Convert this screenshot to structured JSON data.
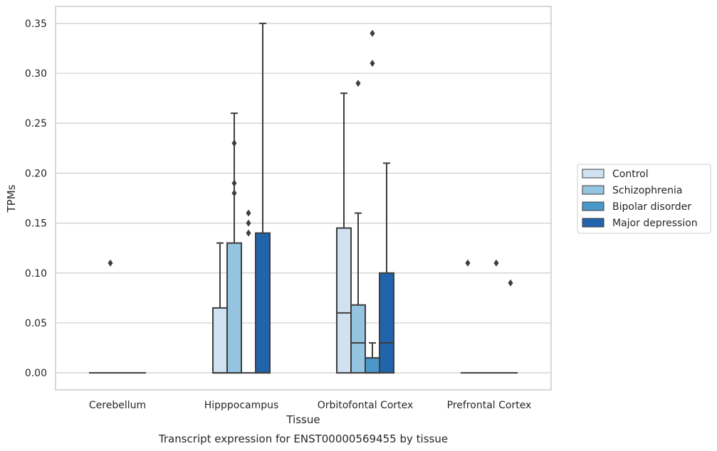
{
  "chart_data": {
    "type": "box",
    "title": "Transcript expression for ENST00000569455 by tissue",
    "xlabel": "Tissue",
    "ylabel": "TPMs",
    "ylim": [
      -0.017,
      0.367
    ],
    "yticks": [
      "0.00",
      "0.05",
      "0.10",
      "0.15",
      "0.20",
      "0.25",
      "0.30",
      "0.35"
    ],
    "categories": [
      "Cerebellum",
      "Hipppocampus",
      "Orbitofontal Cortex",
      "Prefrontal Cortex"
    ],
    "grid": true,
    "legend_position": "right",
    "series": [
      {
        "name": "Control",
        "color": "#d0e1f2",
        "boxes": [
          {
            "q1": 0,
            "median": 0,
            "q3": 0,
            "whisker_low": 0,
            "whisker_high": 0,
            "outliers": []
          },
          {
            "q1": 0,
            "median": 0,
            "q3": 0.065,
            "whisker_low": 0,
            "whisker_high": 0.13,
            "outliers": []
          },
          {
            "q1": 0,
            "median": 0.06,
            "q3": 0.145,
            "whisker_low": 0,
            "whisker_high": 0.28,
            "outliers": []
          },
          {
            "q1": 0,
            "median": 0,
            "q3": 0,
            "whisker_low": 0,
            "whisker_high": 0,
            "outliers": [
              0.11
            ]
          }
        ]
      },
      {
        "name": "Schizophrenia",
        "color": "#94c4df",
        "boxes": [
          {
            "q1": 0,
            "median": 0,
            "q3": 0,
            "whisker_low": 0,
            "whisker_high": 0,
            "outliers": [
              0.11
            ]
          },
          {
            "q1": 0,
            "median": 0,
            "q3": 0.13,
            "whisker_low": 0,
            "whisker_high": 0.26,
            "outliers": [
              0.18,
              0.19,
              0.23
            ]
          },
          {
            "q1": 0,
            "median": 0.03,
            "q3": 0.068,
            "whisker_low": 0,
            "whisker_high": 0.16,
            "outliers": [
              0.29
            ]
          },
          {
            "q1": 0,
            "median": 0,
            "q3": 0,
            "whisker_low": 0,
            "whisker_high": 0,
            "outliers": []
          }
        ]
      },
      {
        "name": "Bipolar disorder",
        "color": "#4a98c9",
        "boxes": [
          {
            "q1": 0,
            "median": 0,
            "q3": 0,
            "whisker_low": 0,
            "whisker_high": 0,
            "outliers": []
          },
          {
            "q1": 0,
            "median": 0,
            "q3": 0,
            "whisker_low": 0,
            "whisker_high": 0,
            "outliers": [
              0.14,
              0.15,
              0.16
            ]
          },
          {
            "q1": 0,
            "median": 0,
            "q3": 0.015,
            "whisker_low": 0,
            "whisker_high": 0.03,
            "outliers": [
              0.31,
              0.34
            ]
          },
          {
            "q1": 0,
            "median": 0,
            "q3": 0,
            "whisker_low": 0,
            "whisker_high": 0,
            "outliers": [
              0.11
            ]
          }
        ]
      },
      {
        "name": "Major depression",
        "color": "#2164ab",
        "boxes": [
          {
            "q1": 0,
            "median": 0,
            "q3": 0,
            "whisker_low": 0,
            "whisker_high": 0,
            "outliers": []
          },
          {
            "q1": 0,
            "median": 0,
            "q3": 0.14,
            "whisker_low": 0,
            "whisker_high": 0.35,
            "outliers": []
          },
          {
            "q1": 0,
            "median": 0.03,
            "q3": 0.1,
            "whisker_low": 0,
            "whisker_high": 0.21,
            "outliers": []
          },
          {
            "q1": 0,
            "median": 0,
            "q3": 0,
            "whisker_low": 0,
            "whisker_high": 0,
            "outliers": [
              0.09
            ]
          }
        ]
      }
    ]
  },
  "colors": {
    "edge": "#3d3d3d",
    "grid": "#cccccc",
    "frame": "#cccccc"
  }
}
